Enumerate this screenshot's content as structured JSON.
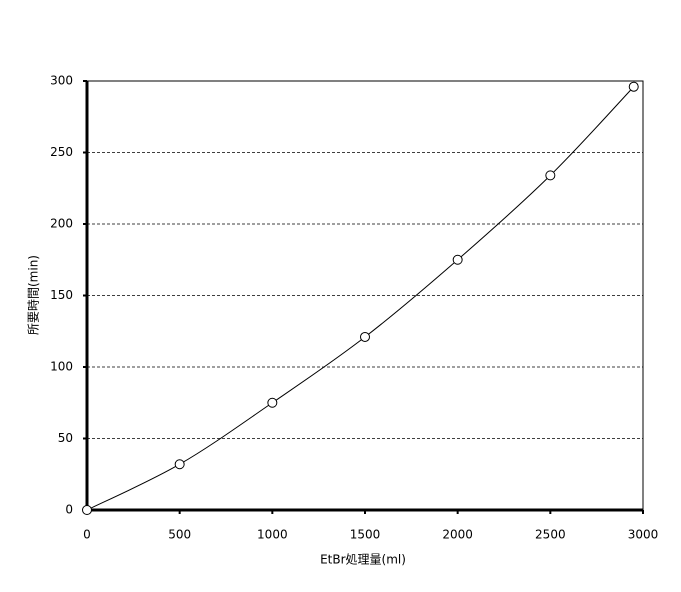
{
  "chart_data": {
    "type": "scatter",
    "x_label": "EtBr処理量(ml)",
    "y_label": "所要時間(min)",
    "x": [
      0,
      500,
      1000,
      1500,
      2000,
      2500,
      2950
    ],
    "series": [
      {
        "color": "#000000",
        "values": [
          0,
          32,
          75,
          121,
          175,
          234,
          296
        ]
      }
    ],
    "xlim": [
      0,
      3000
    ],
    "xticks": [
      0,
      500,
      1000,
      1500,
      2000,
      2500,
      3000
    ],
    "ylim": [
      0,
      300
    ],
    "yticks": [
      0,
      50,
      100,
      150,
      200,
      250,
      300
    ],
    "grid": true,
    "smooth_line": true
  }
}
